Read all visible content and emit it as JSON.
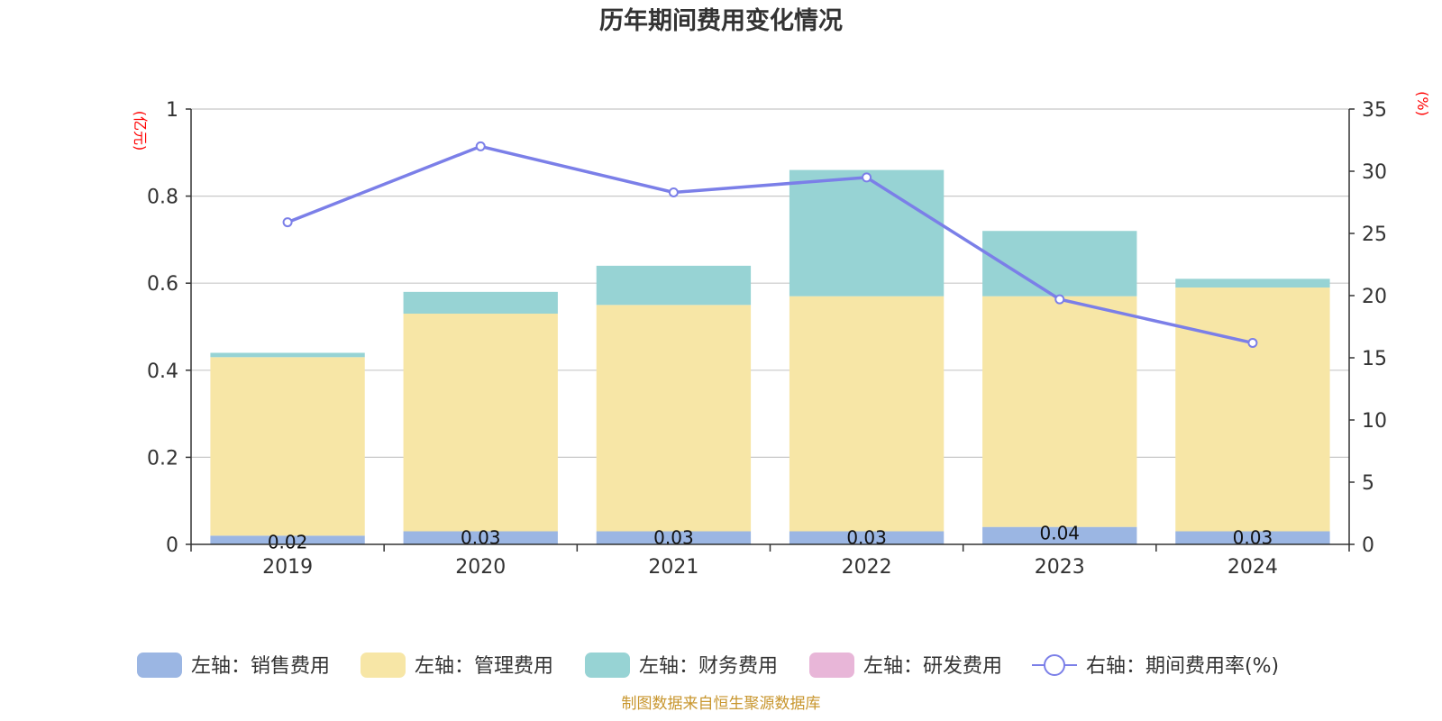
{
  "chart_data": {
    "type": "bar",
    "title": "历年期间费用变化情况",
    "categories": [
      "2019",
      "2020",
      "2021",
      "2022",
      "2023",
      "2024"
    ],
    "left_axis": {
      "unit": "(亿元)",
      "ylim": [
        0,
        1
      ],
      "ticks": [
        "0",
        "0.2",
        "0.4",
        "0.6",
        "0.8",
        "1"
      ]
    },
    "right_axis": {
      "unit": "(%)",
      "ylim": [
        0,
        35
      ],
      "ticks": [
        "0",
        "5",
        "10",
        "15",
        "20",
        "25",
        "30",
        "35"
      ]
    },
    "series": [
      {
        "name": "左轴：销售费用",
        "type": "bar",
        "axis": "left",
        "color": "#9bb6e3",
        "values": [
          0.02,
          0.03,
          0.03,
          0.03,
          0.04,
          0.03
        ],
        "labels": [
          "0.02",
          "0.03",
          "0.03",
          "0.03",
          "0.04",
          "0.03"
        ]
      },
      {
        "name": "左轴：管理费用",
        "type": "bar",
        "axis": "left",
        "color": "#f7e6a6",
        "values": [
          0.41,
          0.5,
          0.52,
          0.54,
          0.53,
          0.56
        ]
      },
      {
        "name": "左轴：财务费用",
        "type": "bar",
        "axis": "left",
        "color": "#97d3d4",
        "values": [
          0.01,
          0.05,
          0.09,
          0.29,
          0.15,
          0.02
        ]
      },
      {
        "name": "左轴：研发费用",
        "type": "bar",
        "axis": "left",
        "color": "#e8b6d8",
        "values": [
          0,
          0,
          0,
          0,
          0,
          0
        ]
      },
      {
        "name": "右轴：期间费用率(%)",
        "type": "line",
        "axis": "right",
        "color": "#7b7fe8",
        "values": [
          25.9,
          32.0,
          28.3,
          29.5,
          19.7,
          16.2
        ]
      }
    ],
    "grid": true,
    "legend_position": "bottom"
  },
  "footer": {
    "source": "制图数据来自恒生聚源数据库"
  }
}
